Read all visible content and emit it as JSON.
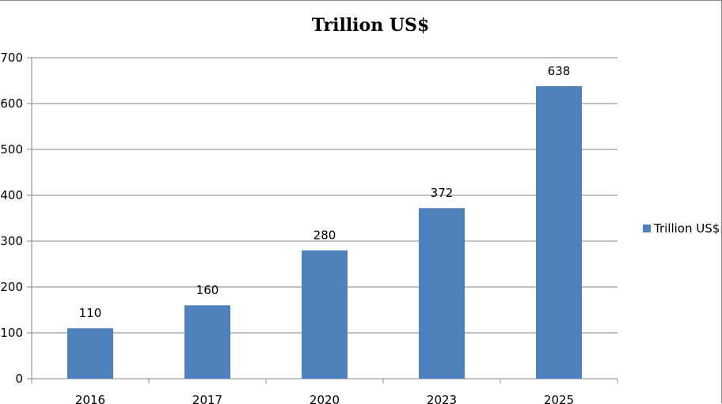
{
  "chart_data": {
    "type": "bar",
    "title": "Trillion  US$",
    "categories": [
      "2016",
      "2017",
      "2020",
      "2023",
      "2025"
    ],
    "series": [
      {
        "name": "Trillion US$",
        "values": [
          110,
          160,
          280,
          372,
          638
        ],
        "color": "#4F81BD"
      }
    ],
    "data_labels": [
      "110",
      "160",
      "280",
      "372",
      "638"
    ],
    "y_ticks": [
      "0",
      "100",
      "200",
      "300",
      "400",
      "500",
      "600",
      "700"
    ],
    "ylim": [
      0,
      700
    ],
    "xlabel": "",
    "ylabel": "",
    "grid": true,
    "legend_position": "right"
  }
}
